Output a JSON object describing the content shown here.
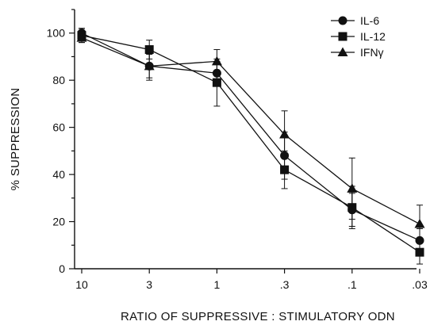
{
  "chart_data": {
    "type": "line",
    "title": "",
    "xlabel": "RATIO OF SUPPRESSIVE : STIMULATORY ODN",
    "ylabel": "% SUPPRESSION",
    "categories": [
      "10",
      "3",
      "1",
      ".3",
      ".1",
      ".03"
    ],
    "ylim": [
      0,
      110
    ],
    "yticks": [
      0,
      20,
      40,
      60,
      80,
      100
    ],
    "grid": false,
    "legend_position": "top-right",
    "series": [
      {
        "name": "IL-6",
        "marker": "circle",
        "values": [
          100,
          86,
          83,
          48,
          25,
          12
        ],
        "error": [
          2,
          5,
          5,
          10,
          7,
          5
        ]
      },
      {
        "name": "IL-12",
        "marker": "square",
        "values": [
          99,
          93,
          79,
          42,
          26,
          7
        ],
        "error": [
          3,
          4,
          10,
          8,
          9,
          5
        ]
      },
      {
        "name": "IFNγ",
        "marker": "triangle",
        "values": [
          98,
          86,
          88,
          57,
          34,
          19
        ],
        "error": [
          2,
          6,
          5,
          10,
          13,
          8
        ]
      }
    ],
    "colors": {
      "ink": "#111111"
    }
  }
}
